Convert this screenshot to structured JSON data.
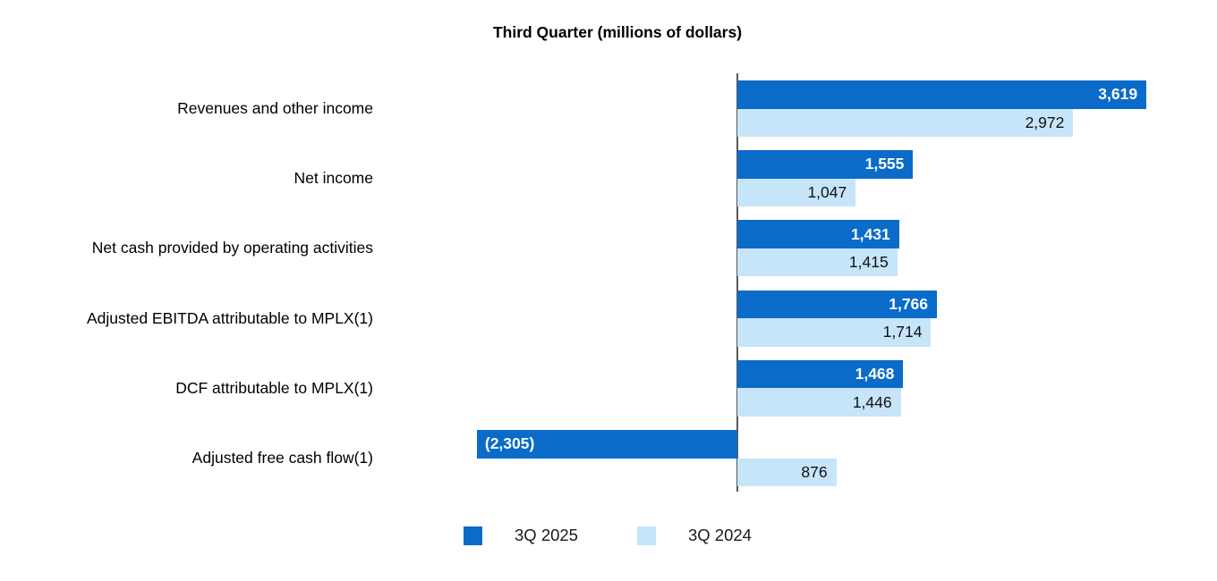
{
  "chart_data": {
    "type": "bar",
    "orientation": "horizontal",
    "title": "Third Quarter (millions of dollars)",
    "categories": [
      "Revenues and other income",
      "Net income",
      "Net cash provided by operating activities",
      "Adjusted EBITDA attributable to MPLX(1)",
      "DCF attributable to MPLX(1)",
      "Adjusted free cash flow(1)"
    ],
    "series": [
      {
        "name": "3Q 2025",
        "color": "#0a6bc9",
        "values": [
          3619,
          1555,
          1431,
          1766,
          1468,
          -2305
        ],
        "value_labels": [
          "3,619",
          "1,555",
          "1,431",
          "1,766",
          "1,468",
          "(2,305)"
        ],
        "label_color": "#ffffff",
        "label_weight": "bold"
      },
      {
        "name": "3Q 2024",
        "color": "#c7e5f8",
        "values": [
          2972,
          1047,
          1415,
          1714,
          1446,
          876
        ],
        "value_labels": [
          "2,972",
          "1,047",
          "1,415",
          "1,714",
          "1,446",
          "876"
        ],
        "label_color": "#111111",
        "label_weight": "normal"
      }
    ],
    "axis": {
      "zero_line_color": "#595959",
      "grid": false
    },
    "legend": {
      "position": "bottom"
    }
  }
}
